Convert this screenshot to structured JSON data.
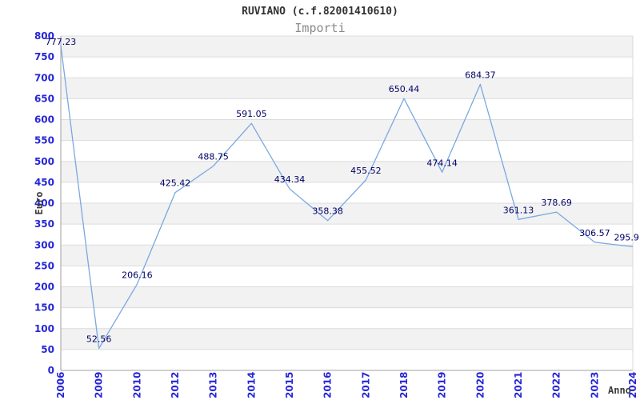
{
  "chart_data": {
    "type": "line",
    "title": "RUVIANO (c.f.82001410610)",
    "subtitle": "Importi",
    "xlabel": "Anno",
    "ylabel": "Euro",
    "categories": [
      "2006",
      "2009",
      "2010",
      "2012",
      "2013",
      "2014",
      "2015",
      "2016",
      "2017",
      "2018",
      "2019",
      "2020",
      "2021",
      "2022",
      "2023",
      "2024"
    ],
    "values": [
      777.23,
      52.56,
      206.16,
      425.42,
      488.75,
      591.05,
      434.34,
      358.38,
      455.52,
      650.44,
      474.14,
      684.37,
      361.13,
      378.69,
      306.57,
      295.9
    ],
    "point_labels": [
      "777.23",
      "52.56",
      "206.16",
      "425.42",
      "488.75",
      "591.05",
      "434.34",
      "358.38",
      "455.52",
      "650.44",
      "474.14",
      "684.37",
      "361.13",
      "378.69",
      "306.57",
      "295.9"
    ],
    "ylim": [
      0,
      800
    ],
    "ytick_step": 50,
    "grid": true,
    "legend_position": "none",
    "band_pattern": "alternating horizontal 50-unit bands, shaded on odd intervals",
    "colors": {
      "line": "#7aa8e0",
      "tick_label": "#2626d8",
      "point_label": "#000066",
      "band": "#f2f2f2",
      "gridline": "#dcdcdc",
      "axis": "#a0a0a0",
      "plot_right_border": "#d8d8d8",
      "title": "#333333",
      "subtitle": "#8a8a8a",
      "axis_title": "#3a3a3a"
    }
  }
}
